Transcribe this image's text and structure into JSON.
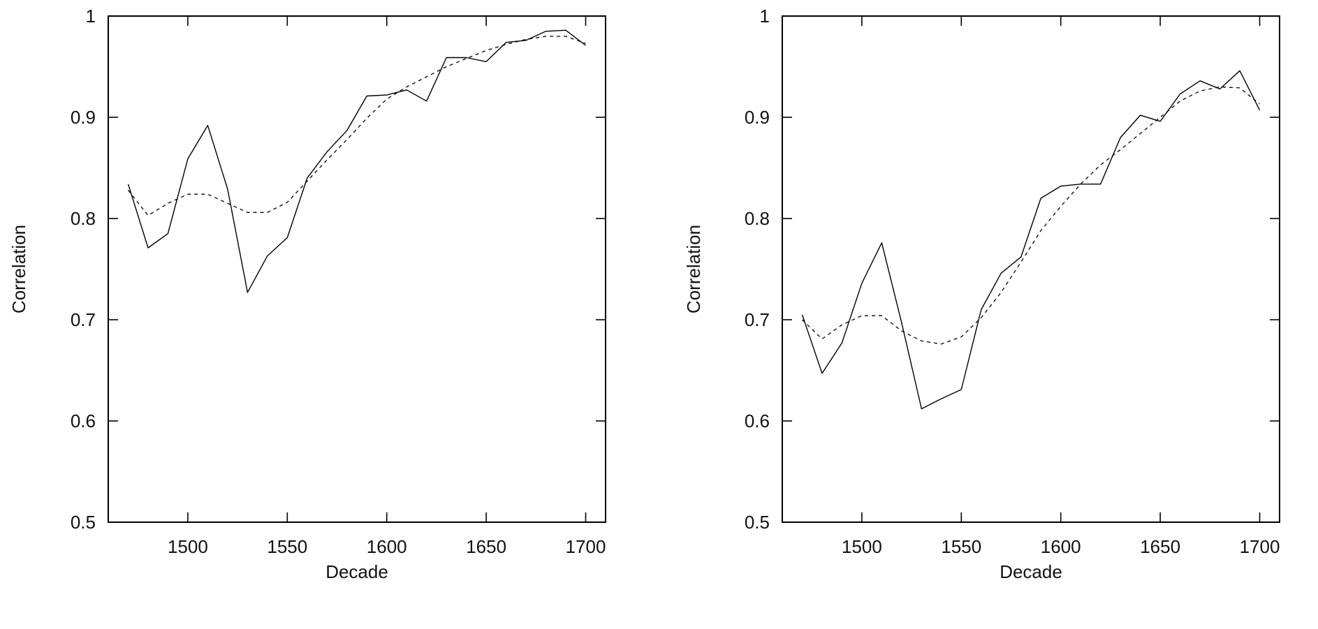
{
  "chart_data": [
    {
      "type": "line",
      "title": "",
      "xlabel": "Decade",
      "ylabel": "Correlation",
      "xlim": [
        1460,
        1710
      ],
      "ylim": [
        0.5,
        1.0
      ],
      "xticks": [
        "1500",
        "1550",
        "1600",
        "1650",
        "1700"
      ],
      "yticks": [
        "0.5",
        "0.6",
        "0.7",
        "0.8",
        "0.9",
        "1"
      ],
      "grid": false,
      "legend": "none",
      "series": [
        {
          "style": "solid",
          "x": [
            1470,
            1480,
            1490,
            1500,
            1510,
            1520,
            1530,
            1540,
            1550,
            1560,
            1570,
            1580,
            1590,
            1600,
            1610,
            1620,
            1630,
            1640,
            1650,
            1660,
            1670,
            1680,
            1690,
            1700
          ],
          "values": [
            0.834,
            0.771,
            0.785,
            0.859,
            0.892,
            0.829,
            0.727,
            0.763,
            0.781,
            0.84,
            0.866,
            0.887,
            0.921,
            0.922,
            0.927,
            0.916,
            0.959,
            0.959,
            0.955,
            0.974,
            0.976,
            0.985,
            0.986,
            0.971
          ]
        },
        {
          "style": "dashed",
          "x": [
            1470,
            1480,
            1490,
            1500,
            1510,
            1520,
            1530,
            1540,
            1550,
            1560,
            1570,
            1580,
            1590,
            1600,
            1610,
            1620,
            1630,
            1640,
            1650,
            1660,
            1670,
            1680,
            1690,
            1700
          ],
          "values": [
            0.828,
            0.803,
            0.815,
            0.824,
            0.824,
            0.815,
            0.806,
            0.806,
            0.816,
            0.837,
            0.858,
            0.878,
            0.899,
            0.918,
            0.93,
            0.94,
            0.95,
            0.958,
            0.966,
            0.972,
            0.977,
            0.98,
            0.98,
            0.973
          ]
        }
      ]
    },
    {
      "type": "line",
      "title": "",
      "xlabel": "Decade",
      "ylabel": "Correlation",
      "xlim": [
        1460,
        1710
      ],
      "ylim": [
        0.5,
        1.0
      ],
      "xticks": [
        "1500",
        "1550",
        "1600",
        "1650",
        "1700"
      ],
      "yticks": [
        "0.5",
        "0.6",
        "0.7",
        "0.8",
        "0.9",
        "1"
      ],
      "grid": false,
      "legend": "none",
      "series": [
        {
          "style": "solid",
          "x": [
            1470,
            1480,
            1490,
            1500,
            1510,
            1520,
            1530,
            1540,
            1550,
            1560,
            1570,
            1580,
            1590,
            1600,
            1610,
            1620,
            1630,
            1640,
            1650,
            1660,
            1670,
            1680,
            1690,
            1700
          ],
          "values": [
            0.705,
            0.647,
            0.677,
            0.736,
            0.776,
            0.697,
            0.612,
            0.622,
            0.631,
            0.71,
            0.746,
            0.762,
            0.82,
            0.832,
            0.834,
            0.834,
            0.88,
            0.902,
            0.896,
            0.923,
            0.936,
            0.928,
            0.946,
            0.907
          ]
        },
        {
          "style": "dashed",
          "x": [
            1470,
            1480,
            1490,
            1500,
            1510,
            1520,
            1530,
            1540,
            1550,
            1560,
            1570,
            1580,
            1590,
            1600,
            1610,
            1620,
            1630,
            1640,
            1650,
            1660,
            1670,
            1680,
            1690,
            1700
          ],
          "values": [
            0.7,
            0.681,
            0.695,
            0.704,
            0.704,
            0.689,
            0.679,
            0.676,
            0.683,
            0.702,
            0.727,
            0.757,
            0.788,
            0.812,
            0.834,
            0.853,
            0.868,
            0.884,
            0.9,
            0.916,
            0.926,
            0.93,
            0.929,
            0.913
          ]
        }
      ]
    }
  ]
}
